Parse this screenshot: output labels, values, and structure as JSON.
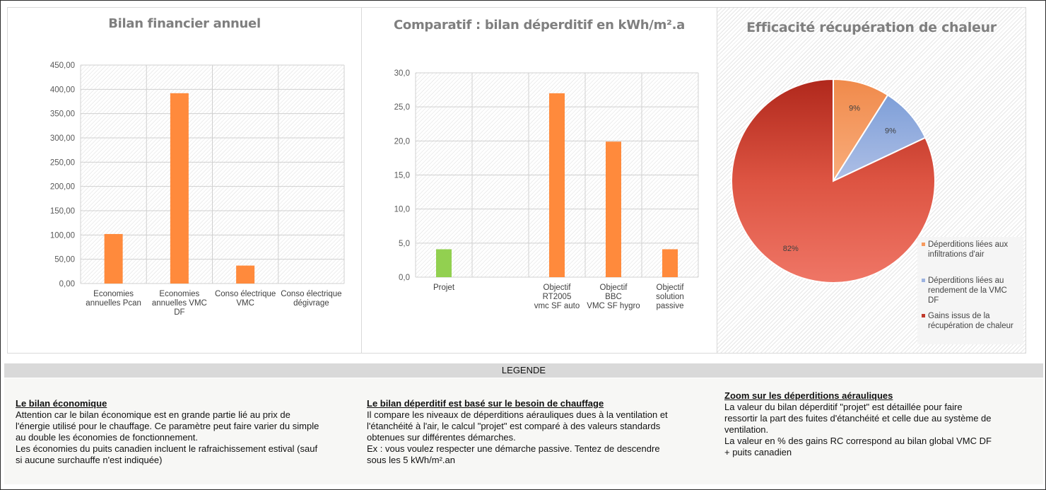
{
  "colors": {
    "bar_orange": "#ff8a3c",
    "bar_green": "#92d050",
    "pie_orange": "#f79a5e",
    "pie_blue": "#9db3e0",
    "pie_red": "#e0533f",
    "title_grey": "#7f7f7f"
  },
  "chart_data": [
    {
      "type": "bar",
      "title": "Bilan financier annuel",
      "categories": [
        "Economies annuelles Pcan",
        "Economies annuelles VMC DF",
        "Conso électrique VMC",
        "Conso électrique dégivrage"
      ],
      "category_lines": [
        [
          "Economies",
          "annuelles Pcan"
        ],
        [
          "Economies",
          "annuelles VMC",
          "DF"
        ],
        [
          "Conso électrique",
          "VMC"
        ],
        [
          "Conso électrique",
          "dégivrage"
        ]
      ],
      "values": [
        102,
        392,
        37,
        0
      ],
      "ylim": [
        0,
        450
      ],
      "yticks": [
        "0,00",
        "50,00",
        "100,00",
        "150,00",
        "200,00",
        "250,00",
        "300,00",
        "350,00",
        "400,00",
        "450,00"
      ],
      "grid": true
    },
    {
      "type": "bar",
      "title": "Comparatif : bilan déperditif en kWh/m².a",
      "categories": [
        "Projet",
        "",
        "Objectif RT2005 vmc SF auto",
        "Objectif BBC VMC SF hygro",
        "Objectif solution passive"
      ],
      "category_lines": [
        [
          "Projet"
        ],
        [],
        [
          "Objectif",
          "RT2005",
          "vmc SF auto"
        ],
        [
          "Objectif",
          "BBC",
          "VMC SF hygro"
        ],
        [
          "Objectif",
          "solution",
          "passive"
        ]
      ],
      "values": [
        4.1,
        0,
        27,
        19.9,
        4.1
      ],
      "bar_colors": [
        "#92d050",
        "#ff8a3c",
        "#ff8a3c",
        "#ff8a3c",
        "#ff8a3c"
      ],
      "ylim": [
        0,
        30
      ],
      "yticks": [
        "0,0",
        "5,0",
        "10,0",
        "15,0",
        "20,0",
        "25,0",
        "30,0"
      ],
      "grid": true
    },
    {
      "type": "pie",
      "title": "Efficacité récupération de chaleur",
      "labels": [
        "Déperditions liées aux infiltrations d'air",
        "Déperditions liées au rendement de la VMC DF",
        "Gains issus de la récupération de chaleur"
      ],
      "values": [
        9,
        9,
        82
      ],
      "value_labels": [
        "9%",
        "9%",
        "82%"
      ],
      "legend_lines": [
        [
          "Déperditions liées aux",
          "infiltrations d'air"
        ],
        [
          "Déperditions liées au",
          "rendement de la VMC",
          "DF"
        ],
        [
          "Gains issus de la",
          "récupération de chaleur"
        ]
      ],
      "legend_position": "right"
    }
  ],
  "legend": {
    "header": "LEGENDE",
    "notes": [
      {
        "title": "Le bilan économique",
        "body": "Attention car le bilan économique est en grande partie lié au prix de\nl'énergie utilisé pour le chauffage. Ce paramètre peut faire varier du simple\nau double les économies de fonctionnement.\nLes économies du puits canadien incluent le rafraichissement estival (sauf\nsi aucune surchauffe n'est indiquée)"
      },
      {
        "title": "Le bilan déperditif est basé sur le besoin de chauffage",
        "body": "Il compare les niveaux de déperditions aérauliques dues à la ventilation et\nl'étanchéité à l'air, le calcul \"projet\" est comparé à des valeurs standards\nobtenues sur différentes démarches.\nEx : vous voulez respecter une démarche passive. Tentez de descendre\nsous les 5 kWh/m².an"
      },
      {
        "title": "Zoom sur les déperditions aérauliques",
        "body": "La valeur du bilan déperditif \"projet\" est détaillée pour faire\nressortir la part des fuites d'étanchéité et celle due au système de\nventilation.\nLa valeur en % des gains RC correspond au bilan global VMC DF\n+ puits canadien"
      }
    ]
  }
}
